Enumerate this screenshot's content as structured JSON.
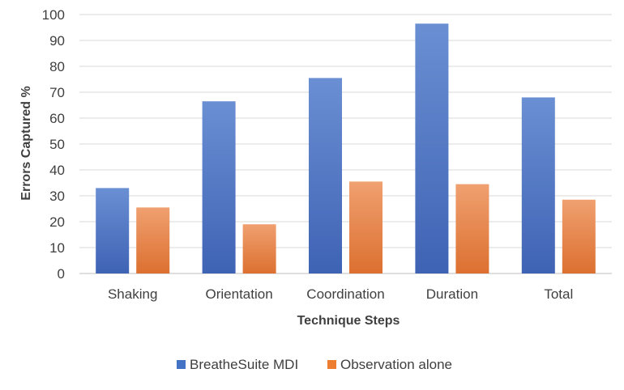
{
  "chart_data": {
    "type": "bar",
    "title": "",
    "xlabel": "Technique Steps",
    "ylabel": "Errors Captured %",
    "categories": [
      "Shaking",
      "Orientation",
      "Coordination",
      "Duration",
      "Total"
    ],
    "series": [
      {
        "name": "BreatheSuite MDI",
        "values": [
          33,
          66.5,
          75.5,
          96.5,
          68
        ],
        "color": "#4472C4"
      },
      {
        "name": "Observation alone",
        "values": [
          25.5,
          19,
          35.5,
          34.5,
          28.5
        ],
        "color": "#ED7D31"
      }
    ],
    "ylim": [
      0,
      100
    ],
    "yticks": [
      0,
      10,
      20,
      30,
      40,
      50,
      60,
      70,
      80,
      90,
      100
    ],
    "grid": true,
    "legend": "bottom-center"
  }
}
